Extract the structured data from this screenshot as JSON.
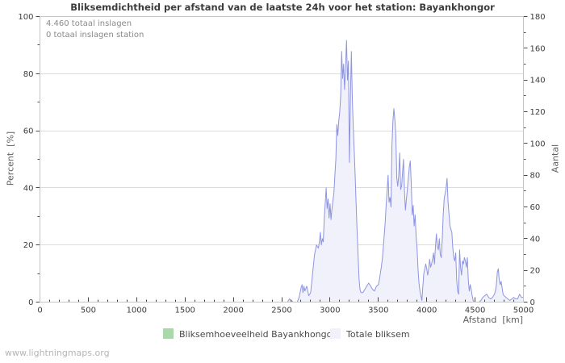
{
  "watermark": "www.lightningmaps.org",
  "colors": {
    "background": "#ffffff",
    "plot_border": "#c6c6c6",
    "grid": "#dcdcdc",
    "tick": "#4a4a4a",
    "tick_label": "#3c3c3c",
    "title": "#3c3c3c",
    "axis_label": "#5f5f5f",
    "annotation": "#8a8a8a",
    "legend_text": "#4a4a4a",
    "watermark": "#b5b5b5"
  },
  "chart_data": {
    "type": "area",
    "title": "Bliksemdichtheid per afstand van de laatste 24h voor het station: Bayankhongor",
    "annotations": [
      "4.460 totaal inslagen",
      "0 totaal inslagen station"
    ],
    "xlabel": "Afstand  [km]",
    "ylabel_left": "Percent  [%]",
    "ylabel_right": "Aantal",
    "x_range": [
      0,
      5000
    ],
    "y_left_range": [
      0,
      100
    ],
    "y_right_range": [
      0,
      180
    ],
    "x_tick_step": 500,
    "x_minor_step": 100,
    "y_left_tick_step": 20,
    "y_left_minor_step": 10,
    "y_right_tick_step": 20,
    "y_right_minor_step": 10,
    "grid": "horizontal lines at left-axis 20/40/60/80, no vertical grid",
    "legend_position": "bottom-center",
    "series": [
      {
        "name": "Bliksemhoeveelheid Bayankhongor",
        "axis": "left",
        "unit": "%",
        "color": "#a9d9a9",
        "points": [
          [
            0,
            0
          ],
          [
            5000,
            0
          ]
        ]
      },
      {
        "name": "Totale bliksem",
        "axis": "right",
        "unit": "aantal",
        "fill": "#f1f1fb",
        "stroke": "#8d94e0",
        "points": [
          [
            0,
            0
          ],
          [
            2540,
            0
          ],
          [
            2560,
            0
          ],
          [
            2580,
            2
          ],
          [
            2600,
            1
          ],
          [
            2620,
            0
          ],
          [
            2660,
            0
          ],
          [
            2680,
            3
          ],
          [
            2700,
            9
          ],
          [
            2710,
            11
          ],
          [
            2720,
            6
          ],
          [
            2730,
            10
          ],
          [
            2740,
            7
          ],
          [
            2760,
            10
          ],
          [
            2780,
            4
          ],
          [
            2800,
            6
          ],
          [
            2820,
            18
          ],
          [
            2840,
            30
          ],
          [
            2860,
            36
          ],
          [
            2880,
            34
          ],
          [
            2890,
            38
          ],
          [
            2900,
            44
          ],
          [
            2910,
            36
          ],
          [
            2920,
            40
          ],
          [
            2930,
            38
          ],
          [
            2940,
            52
          ],
          [
            2950,
            62
          ],
          [
            2960,
            72
          ],
          [
            2970,
            59
          ],
          [
            2980,
            65
          ],
          [
            2990,
            53
          ],
          [
            3000,
            62
          ],
          [
            3010,
            52
          ],
          [
            3020,
            59
          ],
          [
            3040,
            69
          ],
          [
            3050,
            80
          ],
          [
            3060,
            90
          ],
          [
            3070,
            112
          ],
          [
            3080,
            105
          ],
          [
            3090,
            114
          ],
          [
            3100,
            120
          ],
          [
            3110,
            130
          ],
          [
            3120,
            158
          ],
          [
            3130,
            141
          ],
          [
            3140,
            150
          ],
          [
            3150,
            134
          ],
          [
            3160,
            148
          ],
          [
            3170,
            165
          ],
          [
            3180,
            140
          ],
          [
            3190,
            152
          ],
          [
            3200,
            88
          ],
          [
            3210,
            128
          ],
          [
            3220,
            158
          ],
          [
            3230,
            128
          ],
          [
            3240,
            110
          ],
          [
            3250,
            95
          ],
          [
            3260,
            80
          ],
          [
            3270,
            62
          ],
          [
            3280,
            45
          ],
          [
            3290,
            30
          ],
          [
            3300,
            15
          ],
          [
            3310,
            8
          ],
          [
            3320,
            6
          ],
          [
            3340,
            6
          ],
          [
            3360,
            8
          ],
          [
            3380,
            10
          ],
          [
            3400,
            12
          ],
          [
            3420,
            10
          ],
          [
            3440,
            8
          ],
          [
            3460,
            7
          ],
          [
            3480,
            10
          ],
          [
            3500,
            11
          ],
          [
            3510,
            14
          ],
          [
            3520,
            18
          ],
          [
            3530,
            22
          ],
          [
            3540,
            27
          ],
          [
            3550,
            34
          ],
          [
            3560,
            42
          ],
          [
            3570,
            50
          ],
          [
            3580,
            61
          ],
          [
            3590,
            70
          ],
          [
            3600,
            80
          ],
          [
            3610,
            63
          ],
          [
            3620,
            66
          ],
          [
            3630,
            60
          ],
          [
            3640,
            99
          ],
          [
            3650,
            114
          ],
          [
            3660,
            122
          ],
          [
            3670,
            115
          ],
          [
            3680,
            105
          ],
          [
            3690,
            78
          ],
          [
            3700,
            73
          ],
          [
            3710,
            80
          ],
          [
            3720,
            94
          ],
          [
            3730,
            71
          ],
          [
            3740,
            73
          ],
          [
            3750,
            82
          ],
          [
            3760,
            90
          ],
          [
            3770,
            70
          ],
          [
            3780,
            58
          ],
          [
            3790,
            65
          ],
          [
            3800,
            71
          ],
          [
            3810,
            78
          ],
          [
            3820,
            85
          ],
          [
            3830,
            89
          ],
          [
            3840,
            75
          ],
          [
            3850,
            55
          ],
          [
            3860,
            61
          ],
          [
            3870,
            48
          ],
          [
            3880,
            55
          ],
          [
            3890,
            42
          ],
          [
            3900,
            34
          ],
          [
            3910,
            21
          ],
          [
            3920,
            12
          ],
          [
            3930,
            7
          ],
          [
            3940,
            4
          ],
          [
            3950,
            1
          ],
          [
            3960,
            10
          ],
          [
            3970,
            18
          ],
          [
            3980,
            21
          ],
          [
            3990,
            24
          ],
          [
            4000,
            21
          ],
          [
            4010,
            17
          ],
          [
            4020,
            21
          ],
          [
            4030,
            27
          ],
          [
            4040,
            22
          ],
          [
            4050,
            24
          ],
          [
            4060,
            27
          ],
          [
            4070,
            31
          ],
          [
            4080,
            24
          ],
          [
            4090,
            35
          ],
          [
            4100,
            43
          ],
          [
            4110,
            35
          ],
          [
            4120,
            33
          ],
          [
            4130,
            40
          ],
          [
            4140,
            30
          ],
          [
            4150,
            28
          ],
          [
            4160,
            39
          ],
          [
            4170,
            55
          ],
          [
            4180,
            65
          ],
          [
            4200,
            72
          ],
          [
            4210,
            78
          ],
          [
            4220,
            63
          ],
          [
            4240,
            48
          ],
          [
            4250,
            46
          ],
          [
            4260,
            44
          ],
          [
            4270,
            34
          ],
          [
            4280,
            28
          ],
          [
            4290,
            26
          ],
          [
            4300,
            31
          ],
          [
            4310,
            14
          ],
          [
            4320,
            7
          ],
          [
            4330,
            5
          ],
          [
            4340,
            33
          ],
          [
            4350,
            22
          ],
          [
            4360,
            17
          ],
          [
            4370,
            26
          ],
          [
            4380,
            24
          ],
          [
            4390,
            28
          ],
          [
            4400,
            26
          ],
          [
            4410,
            22
          ],
          [
            4420,
            28
          ],
          [
            4430,
            14
          ],
          [
            4440,
            7
          ],
          [
            4450,
            11
          ],
          [
            4460,
            8
          ],
          [
            4470,
            4
          ],
          [
            4480,
            1
          ],
          [
            4490,
            0
          ],
          [
            4540,
            0
          ],
          [
            4560,
            1
          ],
          [
            4580,
            3
          ],
          [
            4600,
            4
          ],
          [
            4620,
            5
          ],
          [
            4640,
            3
          ],
          [
            4660,
            2
          ],
          [
            4680,
            3
          ],
          [
            4700,
            5
          ],
          [
            4710,
            7
          ],
          [
            4720,
            11
          ],
          [
            4730,
            19
          ],
          [
            4740,
            21
          ],
          [
            4750,
            14
          ],
          [
            4760,
            11
          ],
          [
            4770,
            13
          ],
          [
            4780,
            9
          ],
          [
            4790,
            5
          ],
          [
            4800,
            4
          ],
          [
            4820,
            3
          ],
          [
            4840,
            2
          ],
          [
            4860,
            1
          ],
          [
            4880,
            2
          ],
          [
            4900,
            3
          ],
          [
            4920,
            2
          ],
          [
            4940,
            2
          ],
          [
            4960,
            5
          ],
          [
            4980,
            3
          ],
          [
            5000,
            3
          ]
        ]
      }
    ]
  }
}
